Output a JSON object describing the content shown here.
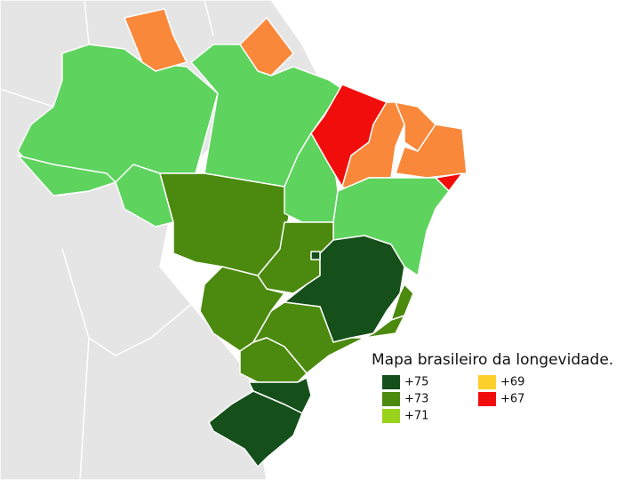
{
  "title": "Mapa brasileiro da longevidade.",
  "legend": [
    {
      "label": "+75",
      "color": "#154f1a"
    },
    {
      "label": "+73",
      "color": "#4b8a0e"
    },
    {
      "label": "+71",
      "color": "#9ad21c"
    },
    {
      "label": "+69",
      "color": "#fccf2a"
    },
    {
      "label": "+67",
      "color": "#f20d0d"
    }
  ]
}
